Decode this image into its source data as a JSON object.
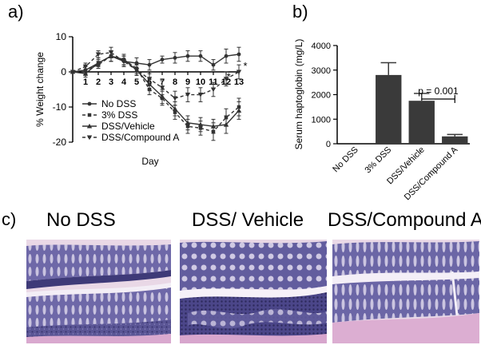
{
  "panels": {
    "a": "a)",
    "b": "b)",
    "c": "c)"
  },
  "chart_data": [
    {
      "type": "line",
      "xlabel": "Day",
      "ylabel": "% Weight change",
      "ylim": [
        -20,
        10
      ],
      "xlim": [
        0,
        13
      ],
      "yticks": [
        10,
        0,
        -10,
        -20
      ],
      "xticks": [
        1,
        2,
        3,
        4,
        5,
        6,
        7,
        8,
        9,
        10,
        11,
        12,
        13
      ],
      "x": [
        0,
        1,
        2,
        3,
        4,
        5,
        6,
        7,
        8,
        9,
        10,
        11,
        12,
        13
      ],
      "legend_position": "bottom-left",
      "series": [
        {
          "name": "No DSS",
          "marker": "circle",
          "line": "solid",
          "values": [
            0,
            0.5,
            2.5,
            4.5,
            3.0,
            2.5,
            2.0,
            3.5,
            4.0,
            4.5,
            4.5,
            2.0,
            4.5,
            5.0
          ],
          "err": [
            0,
            1.5,
            1.5,
            1.5,
            1.5,
            1.5,
            1.5,
            1.0,
            1.5,
            1.5,
            1.5,
            1.5,
            2.0,
            2.0
          ]
        },
        {
          "name": "3% DSS",
          "marker": "square",
          "line": "dashed",
          "values": [
            0,
            0.5,
            2.0,
            4.5,
            3.5,
            1.0,
            -5.0,
            -7.5,
            -11.5,
            -15.5,
            -16.0,
            -17.0,
            -13.0,
            -10.0
          ],
          "err": [
            0,
            1.0,
            1.0,
            1.5,
            1.5,
            1.5,
            1.5,
            2.0,
            2.0,
            2.0,
            2.0,
            2.5,
            2.5,
            2.5
          ]
        },
        {
          "name": "DSS/Vehicle",
          "marker": "triangle",
          "line": "solid",
          "values": [
            0,
            -0.5,
            2.5,
            4.5,
            3.5,
            0.5,
            -3.5,
            -7.0,
            -10.5,
            -14.5,
            -15.0,
            -15.5,
            -15.0,
            -11.0
          ],
          "err": [
            0,
            1.0,
            1.0,
            1.5,
            1.5,
            1.5,
            1.5,
            2.0,
            2.0,
            2.0,
            2.0,
            2.0,
            2.5,
            2.5
          ]
        },
        {
          "name": "DSS/Compound A",
          "marker": "triangle-down",
          "line": "dashed",
          "values": [
            0,
            1.5,
            5.0,
            5.5,
            3.0,
            0.5,
            -2.0,
            -4.5,
            -7.5,
            -6.5,
            -6.5,
            -5.0,
            -2.0,
            0.0
          ],
          "err": [
            0,
            1.0,
            1.0,
            1.5,
            1.5,
            1.5,
            1.5,
            2.0,
            2.0,
            2.0,
            2.0,
            2.0,
            2.0,
            2.0
          ]
        }
      ],
      "annotations": [
        {
          "text": "*",
          "x": 12.2,
          "y": -1
        },
        {
          "text": "*",
          "x": 13.5,
          "y": 2
        }
      ]
    },
    {
      "type": "bar",
      "ylabel": "Serum haptoglobin (mg/L)",
      "ylim": [
        0,
        4000
      ],
      "yticks": [
        0,
        1000,
        2000,
        3000,
        4000
      ],
      "categories": [
        "No DSS",
        "3% DSS",
        "DSS/Vehicle",
        "DSS/Compound A"
      ],
      "values": [
        0,
        2800,
        1750,
        300
      ],
      "errors": [
        0,
        500,
        300,
        80
      ],
      "annotation": {
        "text": "p = 0.001",
        "between": [
          2,
          3
        ]
      }
    }
  ],
  "histology": [
    {
      "title": "No DSS"
    },
    {
      "title": "DSS/ Vehicle"
    },
    {
      "title": "DSS/Compound A"
    }
  ]
}
